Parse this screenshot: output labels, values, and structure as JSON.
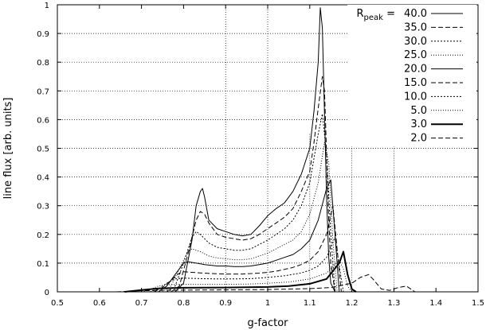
{
  "chart_data": {
    "type": "line",
    "xlabel": "g-factor",
    "ylabel": "line flux [arb. units]",
    "xlim": [
      0.5,
      1.5
    ],
    "ylim": [
      0,
      1
    ],
    "xticks": [
      "0.5",
      "0.6",
      "0.7",
      "0.8",
      "0.9",
      "1",
      "1.1",
      "1.2",
      "1.3",
      "1.4",
      "1.5"
    ],
    "yticks": [
      "0",
      "0.1",
      "0.2",
      "0.3",
      "0.4",
      "0.5",
      "0.6",
      "0.7",
      "0.8",
      "0.9",
      "1"
    ],
    "grid": {
      "vertical_full_at": [
        0.9,
        1.0
      ],
      "vertical_partial_at": [
        1.1,
        1.2,
        1.3
      ],
      "vertical_partial_top": 0.55,
      "horizontal_full_at": [
        0.1,
        0.2,
        0.3,
        0.4,
        0.5,
        0.6,
        0.7,
        0.8,
        0.9
      ],
      "horizontal_left_only_at": [
        0.1,
        0.2,
        0.3,
        0.4,
        0.5,
        0.6,
        0.7,
        0.8,
        0.9
      ]
    },
    "legend": {
      "title_base": "R",
      "title_sub": "peak",
      "title_suffix": " =",
      "placement": "top-right"
    },
    "series": [
      {
        "name": "40.0",
        "dash": "",
        "width": 1,
        "x": [
          0.78,
          0.8,
          0.82,
          0.83,
          0.84,
          0.845,
          0.85,
          0.86,
          0.88,
          0.9,
          0.92,
          0.94,
          0.96,
          0.98,
          1.0,
          1.02,
          1.04,
          1.06,
          1.08,
          1.1,
          1.11,
          1.12,
          1.125,
          1.13,
          1.135,
          1.14,
          1.145,
          1.15,
          1.16
        ],
        "y": [
          0.0,
          0.03,
          0.18,
          0.3,
          0.35,
          0.36,
          0.33,
          0.25,
          0.22,
          0.21,
          0.2,
          0.195,
          0.2,
          0.23,
          0.265,
          0.29,
          0.31,
          0.35,
          0.41,
          0.5,
          0.63,
          0.8,
          0.99,
          0.92,
          0.62,
          0.33,
          0.12,
          0.03,
          0.0
        ]
      },
      {
        "name": "35.0",
        "dash": "6,3",
        "width": 1,
        "x": [
          0.77,
          0.79,
          0.81,
          0.83,
          0.84,
          0.85,
          0.86,
          0.88,
          0.9,
          0.92,
          0.94,
          0.96,
          0.98,
          1.0,
          1.02,
          1.04,
          1.06,
          1.08,
          1.1,
          1.11,
          1.12,
          1.13,
          1.135,
          1.14,
          1.145,
          1.15,
          1.16
        ],
        "y": [
          0.0,
          0.02,
          0.13,
          0.25,
          0.28,
          0.27,
          0.24,
          0.2,
          0.19,
          0.185,
          0.18,
          0.185,
          0.2,
          0.22,
          0.24,
          0.26,
          0.29,
          0.35,
          0.42,
          0.52,
          0.64,
          0.75,
          0.7,
          0.48,
          0.25,
          0.1,
          0.0
        ]
      },
      {
        "name": "30.0",
        "dash": "2,2",
        "width": 1,
        "x": [
          0.76,
          0.78,
          0.8,
          0.82,
          0.83,
          0.84,
          0.86,
          0.88,
          0.9,
          0.92,
          0.94,
          0.96,
          0.98,
          1.0,
          1.02,
          1.04,
          1.06,
          1.08,
          1.1,
          1.12,
          1.13,
          1.14,
          1.15,
          1.16
        ],
        "y": [
          0.0,
          0.02,
          0.1,
          0.19,
          0.21,
          0.2,
          0.17,
          0.155,
          0.15,
          0.145,
          0.145,
          0.15,
          0.165,
          0.18,
          0.2,
          0.22,
          0.25,
          0.3,
          0.38,
          0.55,
          0.62,
          0.48,
          0.2,
          0.0
        ]
      },
      {
        "name": "25.0",
        "dash": "1,2",
        "width": 1,
        "x": [
          0.75,
          0.77,
          0.79,
          0.81,
          0.82,
          0.84,
          0.86,
          0.88,
          0.9,
          0.92,
          0.94,
          0.96,
          0.98,
          1.0,
          1.02,
          1.04,
          1.06,
          1.08,
          1.1,
          1.12,
          1.135,
          1.145,
          1.155,
          1.165
        ],
        "y": [
          0.0,
          0.02,
          0.08,
          0.14,
          0.15,
          0.14,
          0.125,
          0.118,
          0.115,
          0.112,
          0.112,
          0.115,
          0.125,
          0.135,
          0.15,
          0.165,
          0.18,
          0.21,
          0.27,
          0.38,
          0.52,
          0.45,
          0.18,
          0.0
        ]
      },
      {
        "name": "20.0",
        "dash": "",
        "width": 1,
        "x": [
          0.74,
          0.76,
          0.78,
          0.8,
          0.81,
          0.83,
          0.85,
          0.88,
          0.9,
          0.92,
          0.94,
          0.96,
          0.98,
          1.0,
          1.02,
          1.04,
          1.06,
          1.08,
          1.1,
          1.12,
          1.14,
          1.15,
          1.16,
          1.17
        ],
        "y": [
          0.0,
          0.02,
          0.06,
          0.1,
          0.105,
          0.1,
          0.095,
          0.09,
          0.09,
          0.088,
          0.088,
          0.09,
          0.095,
          0.1,
          0.11,
          0.12,
          0.13,
          0.15,
          0.18,
          0.25,
          0.36,
          0.39,
          0.2,
          0.0
        ]
      },
      {
        "name": "15.0",
        "dash": "6,3",
        "width": 1,
        "x": [
          0.73,
          0.75,
          0.77,
          0.79,
          0.8,
          0.82,
          0.85,
          0.88,
          0.9,
          0.94,
          0.98,
          1.0,
          1.02,
          1.04,
          1.06,
          1.08,
          1.1,
          1.12,
          1.14,
          1.155,
          1.165,
          1.175
        ],
        "y": [
          0.0,
          0.015,
          0.04,
          0.065,
          0.07,
          0.068,
          0.065,
          0.063,
          0.062,
          0.062,
          0.065,
          0.068,
          0.072,
          0.078,
          0.085,
          0.095,
          0.11,
          0.14,
          0.2,
          0.3,
          0.15,
          0.0
        ]
      },
      {
        "name": "10.0",
        "dash": "2,2",
        "width": 1,
        "x": [
          0.72,
          0.74,
          0.76,
          0.78,
          0.8,
          0.84,
          0.88,
          0.92,
          0.96,
          1.0,
          1.04,
          1.08,
          1.1,
          1.12,
          1.14,
          1.16,
          1.17,
          1.18
        ],
        "y": [
          0.0,
          0.01,
          0.03,
          0.045,
          0.048,
          0.046,
          0.045,
          0.045,
          0.046,
          0.05,
          0.056,
          0.066,
          0.075,
          0.09,
          0.12,
          0.19,
          0.09,
          0.0
        ]
      },
      {
        "name": "5.0",
        "dash": "1,2",
        "width": 1,
        "x": [
          0.7,
          0.72,
          0.74,
          0.76,
          0.8,
          0.85,
          0.9,
          0.95,
          1.0,
          1.05,
          1.1,
          1.14,
          1.17,
          1.18,
          1.19,
          1.2
        ],
        "y": [
          0.0,
          0.008,
          0.02,
          0.025,
          0.026,
          0.026,
          0.026,
          0.027,
          0.03,
          0.034,
          0.045,
          0.065,
          0.11,
          0.08,
          0.02,
          0.0
        ]
      },
      {
        "name": "3.0",
        "dash": "",
        "width": 2,
        "x": [
          0.66,
          0.7,
          0.74,
          0.8,
          0.9,
          1.0,
          1.05,
          1.1,
          1.14,
          1.17,
          1.18,
          1.19,
          1.2,
          1.21
        ],
        "y": [
          0.0,
          0.006,
          0.012,
          0.014,
          0.015,
          0.017,
          0.02,
          0.028,
          0.045,
          0.1,
          0.14,
          0.06,
          0.01,
          0.0
        ]
      },
      {
        "name": "2.0",
        "dash": "6,3",
        "width": 1,
        "x": [
          0.64,
          0.7,
          0.8,
          0.9,
          1.0,
          1.1,
          1.15,
          1.2,
          1.22,
          1.24,
          1.25,
          1.27,
          1.29,
          1.31,
          1.33,
          1.35
        ],
        "y": [
          0.0,
          0.004,
          0.006,
          0.007,
          0.008,
          0.011,
          0.015,
          0.03,
          0.05,
          0.06,
          0.045,
          0.01,
          0.005,
          0.015,
          0.02,
          0.0
        ]
      }
    ]
  }
}
